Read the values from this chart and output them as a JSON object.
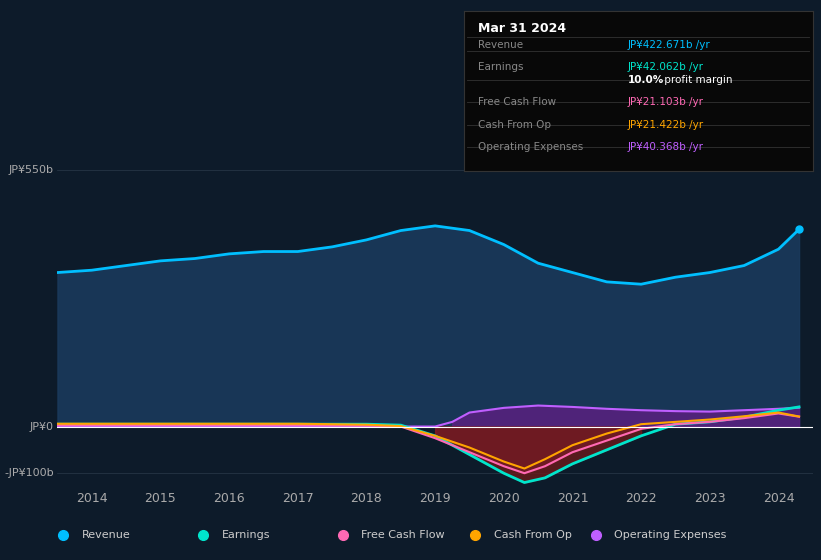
{
  "bg_color": "#0d1b2a",
  "plot_bg_color": "#0d1b2a",
  "ylabel_top": "JP¥550b",
  "ylabel_zero": "JP¥0",
  "ylabel_neg": "-JP¥100b",
  "ylim": [
    -130,
    590
  ],
  "yticks": [
    -100,
    0,
    550
  ],
  "xlim_start": 2013.5,
  "xlim_end": 2024.5,
  "xticks": [
    2014,
    2015,
    2016,
    2017,
    2018,
    2019,
    2020,
    2021,
    2022,
    2023,
    2024
  ],
  "revenue": {
    "x": [
      2013.5,
      2014,
      2014.5,
      2015,
      2015.5,
      2016,
      2016.5,
      2017,
      2017.5,
      2018,
      2018.5,
      2019,
      2019.5,
      2020,
      2020.5,
      2021,
      2021.5,
      2022,
      2022.5,
      2023,
      2023.5,
      2024,
      2024.3
    ],
    "y": [
      330,
      335,
      345,
      355,
      360,
      370,
      375,
      375,
      385,
      400,
      420,
      430,
      420,
      390,
      350,
      330,
      310,
      305,
      320,
      330,
      345,
      380,
      422.671
    ],
    "color": "#00bfff",
    "fill_color": "#1a3a5c",
    "linewidth": 2.0
  },
  "earnings": {
    "x": [
      2013.5,
      2014,
      2015,
      2016,
      2017,
      2018,
      2018.5,
      2019,
      2019.5,
      2020,
      2020.3,
      2020.6,
      2021,
      2021.5,
      2022,
      2022.5,
      2023,
      2023.5,
      2024,
      2024.3
    ],
    "y": [
      5,
      5,
      5,
      5,
      5,
      5,
      3,
      -20,
      -60,
      -100,
      -120,
      -110,
      -80,
      -50,
      -20,
      5,
      10,
      20,
      35,
      42.062
    ],
    "color": "#00e5cc",
    "linewidth": 2.0
  },
  "free_cash_flow": {
    "x": [
      2013.5,
      2014,
      2015,
      2016,
      2017,
      2018,
      2018.5,
      2019,
      2019.5,
      2020,
      2020.3,
      2020.6,
      2021,
      2021.5,
      2022,
      2022.5,
      2023,
      2023.5,
      2024,
      2024.3
    ],
    "y": [
      3,
      3,
      3,
      3,
      3,
      2,
      0,
      -25,
      -55,
      -85,
      -100,
      -85,
      -55,
      -30,
      -5,
      5,
      10,
      18,
      28,
      21.103
    ],
    "color": "#ff69b4",
    "linewidth": 1.5
  },
  "cash_from_op": {
    "x": [
      2013.5,
      2014,
      2015,
      2016,
      2017,
      2018,
      2018.5,
      2019,
      2019.5,
      2020,
      2020.3,
      2020.6,
      2021,
      2021.5,
      2022,
      2022.5,
      2023,
      2023.5,
      2024,
      2024.3
    ],
    "y": [
      6,
      6,
      6,
      6,
      6,
      4,
      1,
      -20,
      -45,
      -75,
      -90,
      -70,
      -40,
      -15,
      5,
      10,
      15,
      22,
      30,
      21.422
    ],
    "color": "#ffa500",
    "linewidth": 1.5
  },
  "op_expenses": {
    "x": [
      2013.5,
      2014,
      2015,
      2016,
      2017,
      2018,
      2018.75,
      2019,
      2019.25,
      2019.5,
      2020,
      2020.5,
      2021,
      2021.5,
      2022,
      2022.5,
      2023,
      2023.5,
      2024,
      2024.3
    ],
    "y": [
      0,
      0,
      0,
      0,
      0,
      0,
      0,
      0,
      10,
      30,
      40,
      45,
      42,
      38,
      35,
      33,
      32,
      35,
      38,
      40.368
    ],
    "color": "#bf5fff",
    "fill_color": "#5a2080",
    "linewidth": 1.5
  },
  "legend_items": [
    {
      "label": "Revenue",
      "color": "#00bfff"
    },
    {
      "label": "Earnings",
      "color": "#00e5cc"
    },
    {
      "label": "Free Cash Flow",
      "color": "#ff69b4"
    },
    {
      "label": "Cash From Op",
      "color": "#ffa500"
    },
    {
      "label": "Operating Expenses",
      "color": "#bf5fff"
    }
  ],
  "grid_color": "#2a3a4a",
  "zero_line_color": "#ffffff",
  "axis_text_color": "#aaaaaa",
  "table_bg": "#080808",
  "table_border": "#333333",
  "info_box": {
    "date": "Mar 31 2024",
    "rows": [
      {
        "label": "Revenue",
        "value": "JP¥422.671b /yr",
        "value_color": "#00bfff",
        "bold_prefix": null
      },
      {
        "label": "Earnings",
        "value": "JP¥42.062b /yr",
        "value_color": "#00e5cc",
        "bold_prefix": null
      },
      {
        "label": "",
        "value": "10.0% profit margin",
        "value_color": "#ffffff",
        "bold_prefix": "10.0%"
      },
      {
        "label": "Free Cash Flow",
        "value": "JP¥21.103b /yr",
        "value_color": "#ff69b4",
        "bold_prefix": null
      },
      {
        "label": "Cash From Op",
        "value": "JP¥21.422b /yr",
        "value_color": "#ffa500",
        "bold_prefix": null
      },
      {
        "label": "Operating Expenses",
        "value": "JP¥40.368b /yr",
        "value_color": "#bf5fff",
        "bold_prefix": null
      }
    ]
  }
}
